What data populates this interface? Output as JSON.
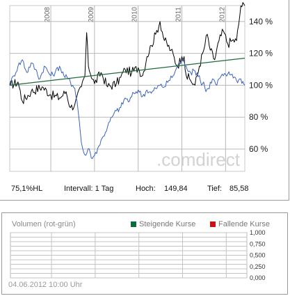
{
  "colors": {
    "price": "#000000",
    "benchmark": "#3a63bf",
    "trend": "#1c6b3d",
    "rising": "#0b6b3a",
    "falling": "#cc1111"
  },
  "stats": {
    "label": "75,1%HL",
    "interval": "Intervall: 1 Tag",
    "high_label": "Hoch:",
    "high_value": "149,84",
    "low_label": "Tief:",
    "low_value": "85,58"
  },
  "watermark": ".comdirect",
  "volume": {
    "title": "Volumen (rot-grün)",
    "rising_label": "Steigende Kurse",
    "falling_label": "Fallende Kurse",
    "y_ticks": [
      "1,000",
      "0,750",
      "0,500",
      "0,250",
      "0,000"
    ]
  },
  "date_footer": "04.06.2012 10:00 Uhr",
  "chart_data": {
    "type": "line",
    "x_ticks": [
      "2008",
      "2009",
      "2010",
      "2011",
      "2012"
    ],
    "y_ticks": [
      "140 %",
      "120 %",
      "100 %",
      "80 %",
      "60 %"
    ],
    "ylim": [
      46,
      150
    ],
    "xlim": [
      2007.06,
      2012.44
    ],
    "series": [
      {
        "key": "price",
        "points": [
          [
            2007.06,
            100
          ],
          [
            2007.25,
            102
          ],
          [
            2007.35,
            90
          ],
          [
            2007.55,
            96
          ],
          [
            2007.8,
            99
          ],
          [
            2008.0,
            94
          ],
          [
            2008.2,
            92
          ],
          [
            2008.35,
            96
          ],
          [
            2008.45,
            86
          ],
          [
            2008.55,
            88
          ],
          [
            2008.7,
            99
          ],
          [
            2008.78,
            106
          ],
          [
            2008.82,
            133
          ],
          [
            2008.86,
            112
          ],
          [
            2009.0,
            101
          ],
          [
            2009.15,
            108
          ],
          [
            2009.3,
            99
          ],
          [
            2009.5,
            101
          ],
          [
            2009.6,
            105
          ],
          [
            2009.7,
            110
          ],
          [
            2009.85,
            108
          ],
          [
            2010.0,
            111
          ],
          [
            2010.1,
            106
          ],
          [
            2010.2,
            118
          ],
          [
            2010.3,
            125
          ],
          [
            2010.4,
            132
          ],
          [
            2010.5,
            140
          ],
          [
            2010.6,
            128
          ],
          [
            2010.75,
            122
          ],
          [
            2010.9,
            112
          ],
          [
            2011.0,
            118
          ],
          [
            2011.05,
            118
          ],
          [
            2011.1,
            106
          ],
          [
            2011.2,
            103
          ],
          [
            2011.3,
            100
          ],
          [
            2011.4,
            112
          ],
          [
            2011.5,
            122
          ],
          [
            2011.58,
            132
          ],
          [
            2011.65,
            122
          ],
          [
            2011.75,
            116
          ],
          [
            2011.85,
            128
          ],
          [
            2011.95,
            134
          ],
          [
            2012.05,
            126
          ],
          [
            2012.15,
            128
          ],
          [
            2012.25,
            128
          ],
          [
            2012.3,
            138
          ],
          [
            2012.35,
            149.84
          ],
          [
            2012.44,
            150
          ]
        ]
      },
      {
        "key": "benchmark",
        "points": [
          [
            2007.06,
            100
          ],
          [
            2007.15,
            106
          ],
          [
            2007.25,
            112
          ],
          [
            2007.35,
            116
          ],
          [
            2007.45,
            108
          ],
          [
            2007.55,
            114
          ],
          [
            2007.65,
            110
          ],
          [
            2007.75,
            104
          ],
          [
            2007.85,
            112
          ],
          [
            2008.0,
            106
          ],
          [
            2008.1,
            108
          ],
          [
            2008.2,
            112
          ],
          [
            2008.3,
            106
          ],
          [
            2008.4,
            104
          ],
          [
            2008.5,
            100
          ],
          [
            2008.55,
            98
          ],
          [
            2008.6,
            90
          ],
          [
            2008.65,
            78
          ],
          [
            2008.7,
            64
          ],
          [
            2008.75,
            58
          ],
          [
            2008.8,
            56
          ],
          [
            2008.85,
            60
          ],
          [
            2008.9,
            58
          ],
          [
            2008.95,
            54
          ],
          [
            2009.0,
            56
          ],
          [
            2009.1,
            62
          ],
          [
            2009.2,
            68
          ],
          [
            2009.3,
            74
          ],
          [
            2009.4,
            80
          ],
          [
            2009.5,
            84
          ],
          [
            2009.6,
            86
          ],
          [
            2009.7,
            92
          ],
          [
            2009.8,
            90
          ],
          [
            2009.9,
            95
          ],
          [
            2010.0,
            97
          ],
          [
            2010.1,
            93
          ],
          [
            2010.2,
            97
          ],
          [
            2010.3,
            95
          ],
          [
            2010.4,
            98
          ],
          [
            2010.5,
            100
          ],
          [
            2010.6,
            99
          ],
          [
            2010.7,
            103
          ],
          [
            2010.8,
            106
          ],
          [
            2010.9,
            112
          ],
          [
            2011.0,
            116
          ],
          [
            2011.1,
            112
          ],
          [
            2011.2,
            108
          ],
          [
            2011.3,
            109
          ],
          [
            2011.4,
            106
          ],
          [
            2011.45,
            100
          ],
          [
            2011.5,
            102
          ],
          [
            2011.55,
            96
          ],
          [
            2011.6,
            98
          ],
          [
            2011.7,
            104
          ],
          [
            2011.8,
            100
          ],
          [
            2011.85,
            104
          ],
          [
            2011.95,
            106
          ],
          [
            2012.05,
            107
          ],
          [
            2012.15,
            107
          ],
          [
            2012.25,
            103
          ],
          [
            2012.35,
            104
          ],
          [
            2012.44,
            100
          ]
        ]
      },
      {
        "key": "trend",
        "points": [
          [
            2007.06,
            100
          ],
          [
            2012.44,
            117
          ]
        ]
      }
    ]
  }
}
